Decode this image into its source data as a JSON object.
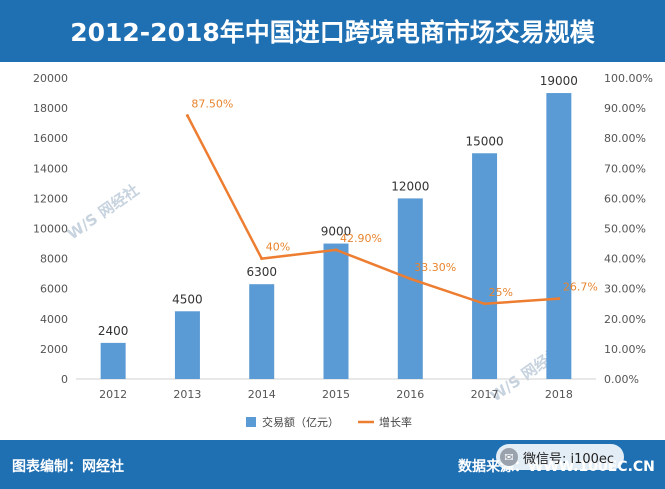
{
  "title": "2012-2018年中国进口跨境电商市场交易规模",
  "footer": {
    "left": "图表编制：网经社",
    "right": "数据来源：WWW.100EC.CN",
    "wechat": "微信号: i100ec"
  },
  "watermark": "网经社",
  "colors": {
    "bar": "#5b9bd5",
    "line": "#ed7d31",
    "header": "#1f6fb3"
  },
  "chart_data": {
    "type": "bar",
    "categories": [
      "2012",
      "2013",
      "2014",
      "2015",
      "2016",
      "2017",
      "2018"
    ],
    "series": [
      {
        "name": "交易额（亿元）",
        "type": "bar",
        "axis": "left",
        "values": [
          2400,
          4500,
          6300,
          9000,
          12000,
          15000,
          19000
        ],
        "labels": [
          "2400",
          "4500",
          "6300",
          "9000",
          "12000",
          "15000",
          "19000"
        ]
      },
      {
        "name": "增长率",
        "type": "line",
        "axis": "right",
        "values": [
          null,
          87.5,
          40,
          42.9,
          33.3,
          25,
          26.7
        ],
        "labels": [
          null,
          "87.50%",
          "40%",
          "42.90%",
          "33.30%",
          "25%",
          "26.7%"
        ]
      }
    ],
    "y_left": {
      "min": 0,
      "max": 20000,
      "step": 2000
    },
    "y_right": {
      "min": 0,
      "max": 100,
      "step": 10,
      "format": "0.00%"
    },
    "legend_position": "bottom",
    "grid": false
  }
}
